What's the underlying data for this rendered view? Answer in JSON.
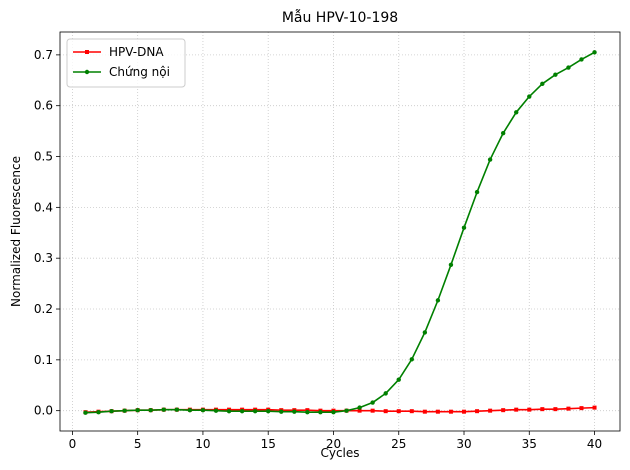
{
  "chart_data": {
    "type": "line",
    "title": "Mẫu HPV-10-198",
    "xlabel": "Cycles",
    "ylabel": "Normalized Fluorescence",
    "xlim": [
      -0.95,
      41.95
    ],
    "ylim": [
      -0.04,
      0.745
    ],
    "xticks": [
      0,
      5,
      10,
      15,
      20,
      25,
      30,
      35,
      40
    ],
    "yticks": [
      0.0,
      0.1,
      0.2,
      0.3,
      0.4,
      0.5,
      0.6,
      0.7
    ],
    "grid": true,
    "legend_position": "top-left",
    "series": [
      {
        "name": "HPV-DNA",
        "color": "#ff0000",
        "marker": "square",
        "x": [
          1,
          2,
          3,
          4,
          5,
          6,
          7,
          8,
          9,
          10,
          11,
          12,
          13,
          14,
          15,
          16,
          17,
          18,
          19,
          20,
          21,
          22,
          23,
          24,
          25,
          26,
          27,
          28,
          29,
          30,
          31,
          32,
          33,
          34,
          35,
          36,
          37,
          38,
          39,
          40
        ],
        "values": [
          -0.003,
          -0.002,
          -0.001,
          0.0,
          0.001,
          0.001,
          0.002,
          0.002,
          0.002,
          0.002,
          0.002,
          0.002,
          0.002,
          0.002,
          0.002,
          0.001,
          0.001,
          0.001,
          0.0,
          0.0,
          0.0,
          0.0,
          0.0,
          -0.001,
          -0.001,
          -0.001,
          -0.002,
          -0.002,
          -0.002,
          -0.002,
          -0.001,
          0.0,
          0.001,
          0.002,
          0.002,
          0.003,
          0.003,
          0.004,
          0.005,
          0.006
        ]
      },
      {
        "name": "Chứng nội",
        "color": "#008000",
        "marker": "circle",
        "x": [
          1,
          2,
          3,
          4,
          5,
          6,
          7,
          8,
          9,
          10,
          11,
          12,
          13,
          14,
          15,
          16,
          17,
          18,
          19,
          20,
          21,
          22,
          23,
          24,
          25,
          26,
          27,
          28,
          29,
          30,
          31,
          32,
          33,
          34,
          35,
          36,
          37,
          38,
          39,
          40
        ],
        "values": [
          -0.004,
          -0.003,
          -0.001,
          0.0,
          0.001,
          0.001,
          0.002,
          0.002,
          0.001,
          0.001,
          0.0,
          -0.001,
          -0.001,
          -0.001,
          -0.001,
          -0.002,
          -0.002,
          -0.003,
          -0.003,
          -0.003,
          0.0,
          0.006,
          0.016,
          0.034,
          0.061,
          0.101,
          0.154,
          0.217,
          0.287,
          0.36,
          0.43,
          0.494,
          0.546,
          0.587,
          0.618,
          0.643,
          0.661,
          0.675,
          0.691,
          0.705
        ]
      }
    ]
  }
}
